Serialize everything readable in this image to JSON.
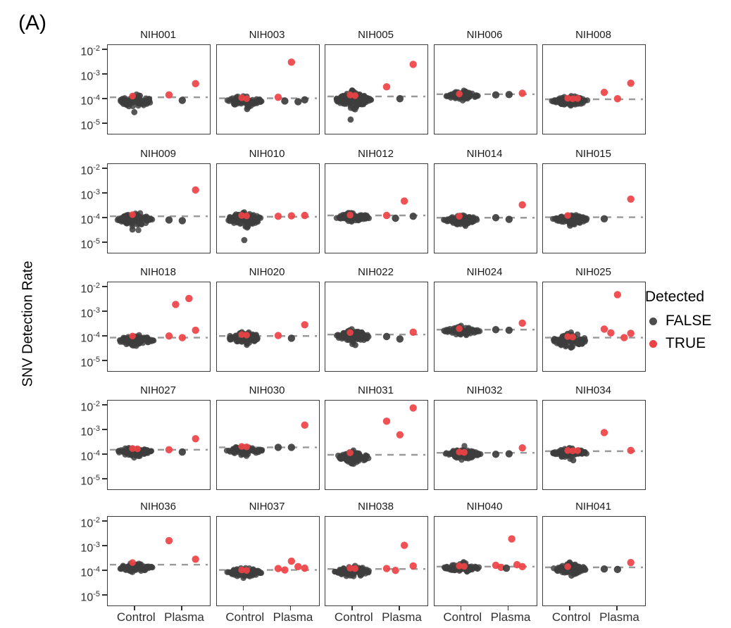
{
  "panel_tag": "(A)",
  "chart_data": {
    "type": "scatter",
    "subtype": "faceted-beeswarm",
    "title": "",
    "ylabel": "SNV Detection Rate",
    "xlabel": "",
    "x_categories": [
      "Control",
      "Plasma"
    ],
    "y_scale": "log10",
    "y_ticks_exponents": [
      -2,
      -3,
      -4,
      -5
    ],
    "y_range_exponents": [
      -5.4,
      -1.8
    ],
    "grid": "off",
    "facet_grid": {
      "rows": 5,
      "cols": 5
    },
    "legend": {
      "title": "Detected",
      "position": "right",
      "items": [
        {
          "label": "FALSE",
          "color": "#4d4d4d"
        },
        {
          "label": "TRUE",
          "color": "#ee4245"
        }
      ]
    },
    "colors": {
      "false_point": "#3d3d3d",
      "true_point": "#ee4245",
      "threshold_line": "#999999",
      "panel_border": "#3c3c3c",
      "tick_text": "#303030"
    },
    "panels": [
      {
        "label": "NIH001",
        "threshold": 0.00012,
        "control": {
          "median": 8.5e-05,
          "n": 70,
          "spread": 0.11,
          "true_points": [
            0.000135
          ],
          "low_outliers": [
            3e-05
          ]
        },
        "plasma": [
          {
            "value": 0.00015,
            "detected": true
          },
          {
            "value": 9e-05,
            "detected": false
          },
          {
            "value": 0.00043,
            "detected": true
          }
        ]
      },
      {
        "label": "NIH003",
        "threshold": 0.00011,
        "control": {
          "median": 8.5e-05,
          "n": 75,
          "spread": 0.11,
          "true_points": [
            0.000115,
            0.000105
          ],
          "low_outliers": [
            4e-05
          ]
        },
        "plasma": [
          {
            "value": 0.00012,
            "detected": true
          },
          {
            "value": 8.5e-05,
            "detected": false
          },
          {
            "value": 0.0032,
            "detected": true
          },
          {
            "value": 8e-05,
            "detected": false
          },
          {
            "value": 9.5e-05,
            "detected": false
          }
        ]
      },
      {
        "label": "NIH005",
        "threshold": 0.00013,
        "control": {
          "median": 9.5e-05,
          "n": 95,
          "spread": 0.13,
          "true_points": [
            0.00015,
            0.00014
          ],
          "low_outliers": [
            1.5e-05
          ]
        },
        "plasma": [
          {
            "value": 0.00032,
            "detected": true
          },
          {
            "value": 0.000105,
            "detected": false
          },
          {
            "value": 0.0026,
            "detected": true
          }
        ]
      },
      {
        "label": "NIH006",
        "threshold": 0.00016,
        "control": {
          "median": 0.00014,
          "n": 65,
          "spread": 0.08,
          "true_points": [
            0.000165
          ],
          "low_outliers": []
        },
        "plasma": [
          {
            "value": 0.00015,
            "detected": false
          },
          {
            "value": 0.000155,
            "detected": false
          },
          {
            "value": 0.000175,
            "detected": true
          }
        ]
      },
      {
        "label": "NIH008",
        "threshold": 0.0001,
        "control": {
          "median": 8.5e-05,
          "n": 80,
          "spread": 0.09,
          "true_points": [
            0.00011,
            0.000105,
            0.000108
          ],
          "low_outliers": []
        },
        "plasma": [
          {
            "value": 0.00019,
            "detected": true
          },
          {
            "value": 0.000105,
            "detected": true
          },
          {
            "value": 0.00045,
            "detected": true
          }
        ]
      },
      {
        "label": "NIH009",
        "threshold": 0.00012,
        "control": {
          "median": 9e-05,
          "n": 80,
          "spread": 0.12,
          "true_points": [
            0.00014
          ],
          "low_outliers": [
            3.5e-05
          ]
        },
        "plasma": [
          {
            "value": 8.5e-05,
            "detected": false
          },
          {
            "value": 8e-05,
            "detected": false
          },
          {
            "value": 0.0014,
            "detected": true
          }
        ]
      },
      {
        "label": "NIH010",
        "threshold": 0.000115,
        "control": {
          "median": 9e-05,
          "n": 85,
          "spread": 0.13,
          "true_points": [
            0.00013,
            0.000125
          ],
          "low_outliers": [
            1.3e-05
          ]
        },
        "plasma": [
          {
            "value": 0.00012,
            "detected": true
          },
          {
            "value": 0.000125,
            "detected": true
          },
          {
            "value": 0.00013,
            "detected": true
          }
        ]
      },
      {
        "label": "NIH012",
        "threshold": 0.00013,
        "control": {
          "median": 0.00011,
          "n": 75,
          "spread": 0.08,
          "true_points": [
            0.000135
          ],
          "low_outliers": []
        },
        "plasma": [
          {
            "value": 0.00013,
            "detected": true
          },
          {
            "value": 0.0001,
            "detected": false
          },
          {
            "value": 0.0005,
            "detected": true
          },
          {
            "value": 0.00012,
            "detected": false
          }
        ]
      },
      {
        "label": "NIH014",
        "threshold": 0.000105,
        "control": {
          "median": 8.5e-05,
          "n": 70,
          "spread": 0.09,
          "true_points": [
            0.00012
          ],
          "low_outliers": []
        },
        "plasma": [
          {
            "value": 0.000105,
            "detected": false
          },
          {
            "value": 9e-05,
            "detected": false
          },
          {
            "value": 0.00035,
            "detected": true
          }
        ]
      },
      {
        "label": "NIH015",
        "threshold": 0.00011,
        "control": {
          "median": 9e-05,
          "n": 70,
          "spread": 0.09,
          "true_points": [
            0.00013
          ],
          "low_outliers": [
            5e-05
          ]
        },
        "plasma": [
          {
            "value": 9.5e-05,
            "detected": false
          },
          {
            "value": 0.0006,
            "detected": true
          }
        ]
      },
      {
        "label": "NIH018",
        "threshold": 9e-05,
        "control": {
          "median": 7e-05,
          "n": 85,
          "spread": 0.1,
          "true_points": [
            0.000105
          ],
          "low_outliers": []
        },
        "plasma": [
          {
            "value": 0.000105,
            "detected": true
          },
          {
            "value": 0.002,
            "detected": true
          },
          {
            "value": 9e-05,
            "detected": true
          },
          {
            "value": 0.0035,
            "detected": true
          },
          {
            "value": 0.00018,
            "detected": true
          }
        ]
      },
      {
        "label": "NIH020",
        "threshold": 0.000105,
        "control": {
          "median": 9e-05,
          "n": 75,
          "spread": 0.1,
          "true_points": [
            0.00012,
            0.000115
          ],
          "low_outliers": []
        },
        "plasma": [
          {
            "value": 0.00011,
            "detected": true
          },
          {
            "value": 8.5e-05,
            "detected": false
          },
          {
            "value": 0.0003,
            "detected": true
          }
        ]
      },
      {
        "label": "NIH022",
        "threshold": 0.00012,
        "control": {
          "median": 0.0001,
          "n": 80,
          "spread": 0.11,
          "true_points": [
            0.000145
          ],
          "low_outliers": [
            4.5e-05
          ]
        },
        "plasma": [
          {
            "value": 0.0001,
            "detected": false
          },
          {
            "value": 8e-05,
            "detected": false
          },
          {
            "value": 0.00015,
            "detected": true
          }
        ]
      },
      {
        "label": "NIH024",
        "threshold": 0.00019,
        "control": {
          "median": 0.00017,
          "n": 70,
          "spread": 0.08,
          "true_points": [
            0.00021
          ],
          "low_outliers": []
        },
        "plasma": [
          {
            "value": 0.00019,
            "detected": false
          },
          {
            "value": 0.00018,
            "detected": false
          },
          {
            "value": 0.00035,
            "detected": true
          }
        ]
      },
      {
        "label": "NIH025",
        "threshold": 9e-05,
        "control": {
          "median": 7e-05,
          "n": 85,
          "spread": 0.13,
          "true_points": [
            0.0001,
            9.5e-05
          ],
          "low_outliers": []
        },
        "plasma": [
          {
            "value": 0.0002,
            "detected": true
          },
          {
            "value": 0.00014,
            "detected": true
          },
          {
            "value": 0.005,
            "detected": true
          },
          {
            "value": 9e-05,
            "detected": true
          },
          {
            "value": 0.000135,
            "detected": true
          }
        ]
      },
      {
        "label": "NIH027",
        "threshold": 0.00016,
        "control": {
          "median": 0.000135,
          "n": 80,
          "spread": 0.09,
          "true_points": [
            0.00018,
            0.000175
          ],
          "low_outliers": []
        },
        "plasma": [
          {
            "value": 0.00016,
            "detected": true
          },
          {
            "value": 0.00013,
            "detected": false
          },
          {
            "value": 0.00045,
            "detected": true
          }
        ]
      },
      {
        "label": "NIH030",
        "threshold": 0.0002,
        "control": {
          "median": 0.00015,
          "n": 80,
          "spread": 0.08,
          "true_points": [
            0.00022,
            0.00021
          ],
          "low_outliers": []
        },
        "plasma": [
          {
            "value": 0.0002,
            "detected": false
          },
          {
            "value": 0.0002,
            "detected": false
          },
          {
            "value": 0.0016,
            "detected": true
          }
        ]
      },
      {
        "label": "NIH031",
        "threshold": 0.0001,
        "control": {
          "median": 8e-05,
          "n": 75,
          "spread": 0.1,
          "true_points": [
            0.00012
          ],
          "low_outliers": [
            4.5e-05
          ]
        },
        "plasma": [
          {
            "value": 0.0023,
            "detected": true
          },
          {
            "value": 0.00065,
            "detected": true
          },
          {
            "value": 0.008,
            "detected": true
          }
        ]
      },
      {
        "label": "NIH032",
        "threshold": 0.00012,
        "control": {
          "median": 0.000105,
          "n": 75,
          "spread": 0.09,
          "true_points": [
            0.00013,
            0.000125
          ],
          "low_outliers": []
        },
        "plasma": [
          {
            "value": 0.000105,
            "detected": false
          },
          {
            "value": 0.00011,
            "detected": false
          },
          {
            "value": 0.00019,
            "detected": true
          }
        ]
      },
      {
        "label": "NIH034",
        "threshold": 0.00014,
        "control": {
          "median": 0.000115,
          "n": 70,
          "spread": 0.09,
          "true_points": [
            0.00015,
            0.000145,
            0.000148
          ],
          "low_outliers": [
            6e-05
          ]
        },
        "plasma": [
          {
            "value": 0.0008,
            "detected": true
          },
          {
            "value": 0.00015,
            "detected": true
          }
        ]
      },
      {
        "label": "NIH036",
        "threshold": 0.00018,
        "control": {
          "median": 0.000135,
          "n": 70,
          "spread": 0.08,
          "true_points": [
            0.00022
          ],
          "low_outliers": []
        },
        "plasma": [
          {
            "value": 0.0017,
            "detected": true
          },
          {
            "value": 0.0003,
            "detected": true
          }
        ]
      },
      {
        "label": "NIH037",
        "threshold": 0.00011,
        "control": {
          "median": 8.5e-05,
          "n": 75,
          "spread": 0.09,
          "true_points": [
            0.00011,
            0.000105
          ],
          "low_outliers": []
        },
        "plasma": [
          {
            "value": 0.000125,
            "detected": true
          },
          {
            "value": 0.00011,
            "detected": true
          },
          {
            "value": 0.00025,
            "detected": true
          },
          {
            "value": 0.00015,
            "detected": true
          },
          {
            "value": 0.00013,
            "detected": true
          }
        ]
      },
      {
        "label": "NIH038",
        "threshold": 0.00012,
        "control": {
          "median": 9.5e-05,
          "n": 80,
          "spread": 0.1,
          "true_points": [
            0.00013,
            0.000125
          ],
          "low_outliers": []
        },
        "plasma": [
          {
            "value": 0.000125,
            "detected": true
          },
          {
            "value": 0.000105,
            "detected": true
          },
          {
            "value": 0.0011,
            "detected": true
          },
          {
            "value": 0.00016,
            "detected": true
          }
        ]
      },
      {
        "label": "NIH040",
        "threshold": 0.00015,
        "control": {
          "median": 0.000135,
          "n": 80,
          "spread": 0.08,
          "true_points": [
            0.00016,
            0.000155
          ],
          "low_outliers": []
        },
        "plasma": [
          {
            "value": 0.00017,
            "detected": true
          },
          {
            "value": 0.00014,
            "detected": true
          },
          {
            "value": 0.00013,
            "detected": false
          },
          {
            "value": 0.002,
            "detected": true
          },
          {
            "value": 0.00018,
            "detected": true
          },
          {
            "value": 0.00015,
            "detected": true
          }
        ]
      },
      {
        "label": "NIH041",
        "threshold": 0.00014,
        "control": {
          "median": 0.00012,
          "n": 80,
          "spread": 0.09,
          "true_points": [
            0.00015
          ],
          "low_outliers": [
            6.5e-05
          ]
        },
        "plasma": [
          {
            "value": 0.00012,
            "detected": false
          },
          {
            "value": 0.000115,
            "detected": false
          },
          {
            "value": 0.00022,
            "detected": true
          }
        ]
      }
    ]
  }
}
